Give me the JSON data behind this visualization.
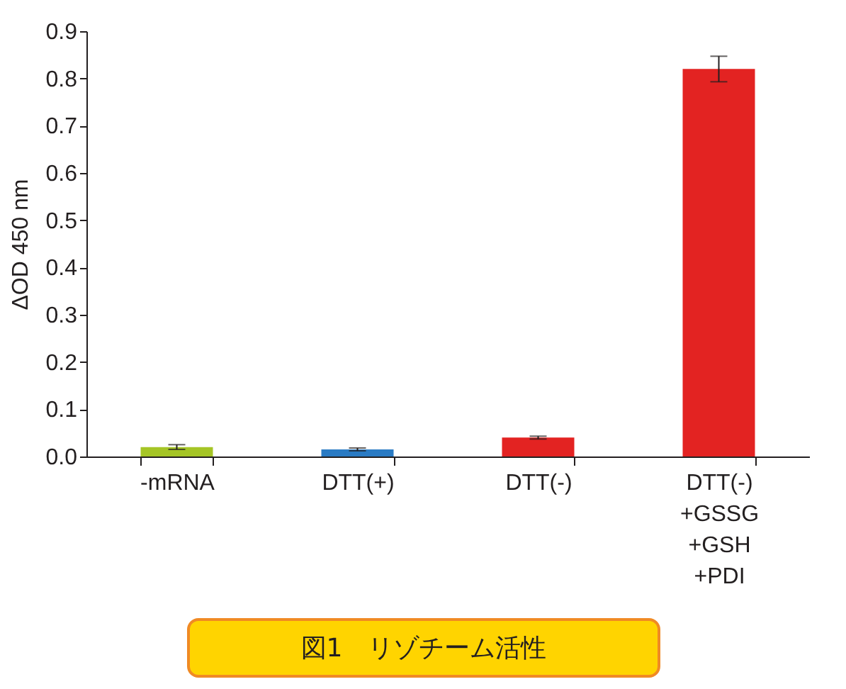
{
  "chart_data": {
    "type": "bar",
    "ylabel": "ΔOD 450 nm",
    "categories": [
      "-mRNA",
      "DTT(+)",
      "DTT(-)",
      "DTT(-)\n+GSSG\n+GSH\n+PDI"
    ],
    "values": [
      0.02,
      0.015,
      0.04,
      0.82
    ],
    "colors": [
      "#a5c526",
      "#2a7bc4",
      "#e32322",
      "#e32322"
    ],
    "errors": [
      0.005,
      0.003,
      0.003,
      0.027
    ],
    "ylim": [
      0,
      0.9
    ],
    "yticks": [
      {
        "value": 0,
        "label": "0.0"
      },
      0.1,
      0.2,
      0.3,
      0.4,
      0.5,
      0.6,
      0.7,
      0.8,
      0.9
    ],
    "grid": false,
    "annotations": [
      "図1　リゾチーム活性"
    ]
  }
}
